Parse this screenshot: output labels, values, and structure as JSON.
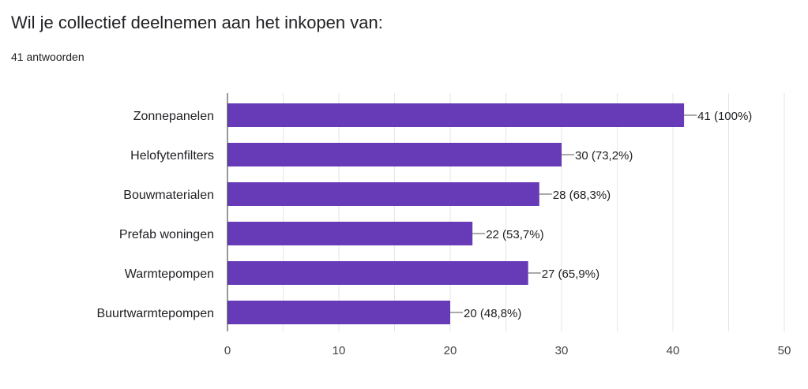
{
  "header": {
    "question": "Wil je collectief deelnemen aan het inkopen van:",
    "responses": "41 antwoorden"
  },
  "colors": {
    "bar": "#673ab7"
  },
  "chart_data": {
    "type": "bar",
    "orientation": "horizontal",
    "categories": [
      "Zonnepanelen",
      "Helofytenfilters",
      "Bouwmaterialen",
      "Prefab woningen",
      "Warmtepompen",
      "Buurtwarmtepompen"
    ],
    "values": [
      41,
      30,
      28,
      22,
      27,
      20
    ],
    "data_labels": [
      "41 (100%)",
      "30 (73,2%)",
      "28 (68,3%)",
      "22 (53,7%)",
      "27 (65,9%)",
      "20 (48,8%)"
    ],
    "xlim": [
      0,
      50
    ],
    "xticks": [
      0,
      10,
      20,
      30,
      40,
      50
    ],
    "grid": true,
    "legend": "none"
  }
}
